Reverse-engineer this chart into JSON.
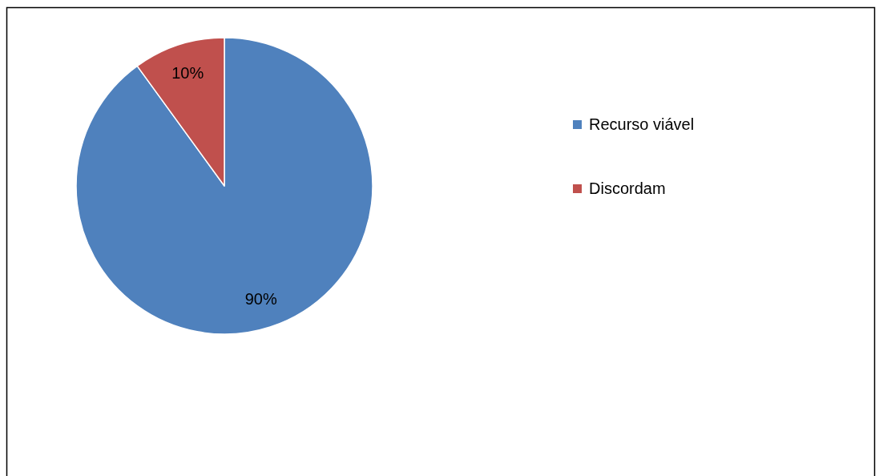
{
  "chart_data": {
    "type": "pie",
    "categories": [
      "Recurso viável",
      "Discordam"
    ],
    "values": [
      90,
      10
    ],
    "colors": [
      "#4f81bd",
      "#c0504d"
    ],
    "value_labels": [
      "90%",
      "10%"
    ],
    "legend": "right"
  }
}
